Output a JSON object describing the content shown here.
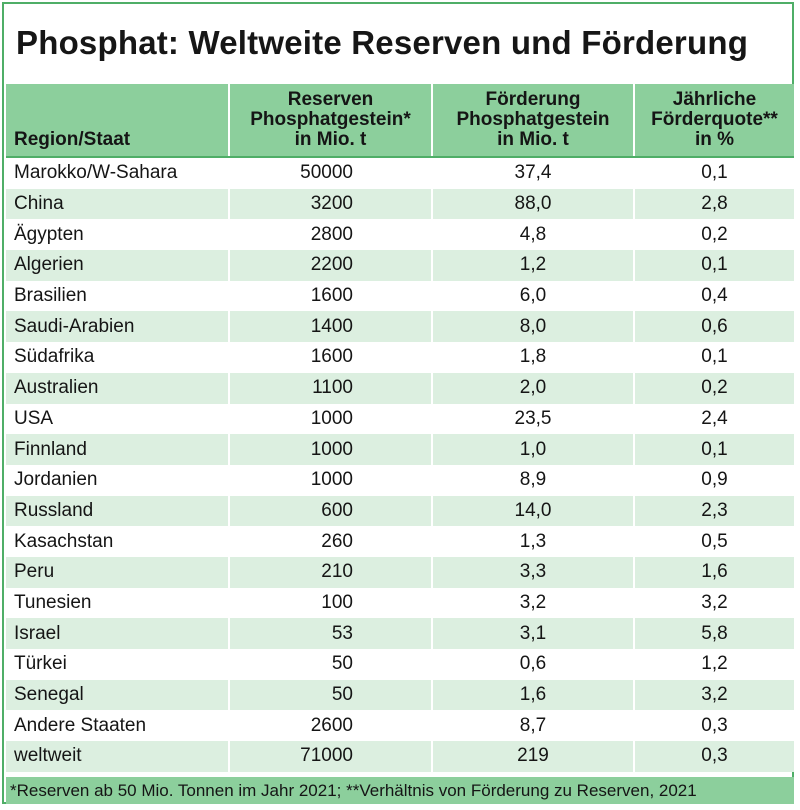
{
  "title": "Phosphat: Weltweite Reserven und Förderung",
  "chart_data": {
    "type": "table",
    "title": "Phosphat: Weltweite Reserven und Förderung",
    "columns": [
      {
        "lines": [
          "Region/Staat"
        ]
      },
      {
        "lines": [
          "Reserven",
          "Phosphatgestein*",
          "in Mio. t"
        ]
      },
      {
        "lines": [
          "Förderung",
          "Phosphatgestein",
          "in Mio. t"
        ]
      },
      {
        "lines": [
          "Jährliche",
          "Förderquote**",
          "in %"
        ]
      }
    ],
    "rows": [
      [
        "Marokko/W-Sahara",
        "50000",
        "37,4",
        "0,1"
      ],
      [
        "China",
        "3200",
        "88,0",
        "2,8"
      ],
      [
        "Ägypten",
        "2800",
        "4,8",
        "0,2"
      ],
      [
        "Algerien",
        "2200",
        "1,2",
        "0,1"
      ],
      [
        "Brasilien",
        "1600",
        "6,0",
        "0,4"
      ],
      [
        "Saudi-Arabien",
        "1400",
        "8,0",
        "0,6"
      ],
      [
        "Südafrika",
        "1600",
        "1,8",
        "0,1"
      ],
      [
        "Australien",
        "1100",
        "2,0",
        "0,2"
      ],
      [
        "USA",
        "1000",
        "23,5",
        "2,4"
      ],
      [
        "Finnland",
        "1000",
        "1,0",
        "0,1"
      ],
      [
        "Jordanien",
        "1000",
        "8,9",
        "0,9"
      ],
      [
        "Russland",
        "600",
        "14,0",
        "2,3"
      ],
      [
        "Kasachstan",
        "260",
        "1,3",
        "0,5"
      ],
      [
        "Peru",
        "210",
        "3,3",
        "1,6"
      ],
      [
        "Tunesien",
        "100",
        "3,2",
        "3,2"
      ],
      [
        "Israel",
        "53",
        "3,1",
        "5,8"
      ],
      [
        "Türkei",
        "50",
        "0,6",
        "1,2"
      ],
      [
        "Senegal",
        "50",
        "1,6",
        "3,2"
      ],
      [
        "Andere Staaten",
        "2600",
        "8,7",
        "0,3"
      ],
      [
        "weltweit",
        "71000",
        "219",
        "0,3"
      ]
    ]
  },
  "footnote": "*Reserven ab 50 Mio. Tonnen im Jahr 2021; **Verhältnis von Förderung zu Reserven, 2021",
  "colors": {
    "header_bg": "#8ccf9c",
    "stripe_bg": "#dcefe0",
    "border": "#4fae67"
  }
}
